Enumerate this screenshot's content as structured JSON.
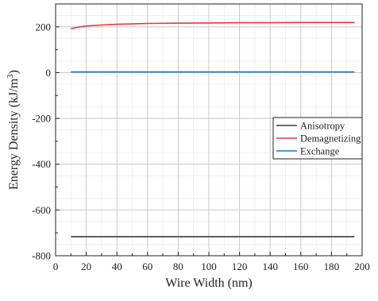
{
  "chart_data": {
    "type": "line",
    "xlabel": "Wire Width (nm)",
    "ylabel_main": "Energy Density (kJ/m",
    "ylabel_sup": "3",
    "ylabel_close": ")",
    "xlim": [
      0,
      200
    ],
    "ylim": [
      -800,
      300
    ],
    "x_ticks": [
      0,
      20,
      40,
      60,
      80,
      100,
      120,
      140,
      160,
      180,
      200
    ],
    "y_ticks": [
      200,
      0,
      -200,
      -400,
      -600,
      -800
    ],
    "grid": true,
    "legend_position": "right",
    "series": [
      {
        "name": "Anisotropy",
        "color": "#3a3a3a",
        "x": [
          10,
          195
        ],
        "y": [
          -717,
          -717
        ]
      },
      {
        "name": "Demagnetizing",
        "color": "#e8383d",
        "x": [
          10,
          15,
          20,
          30,
          40,
          50,
          60,
          80,
          100,
          120,
          140,
          160,
          180,
          195
        ],
        "y": [
          192,
          199,
          204,
          208,
          211,
          213,
          215,
          216,
          217,
          218,
          218,
          219,
          219,
          219
        ]
      },
      {
        "name": "Exchange",
        "color": "#1f6fd6",
        "x": [
          10,
          195
        ],
        "y": [
          3,
          3
        ]
      }
    ]
  }
}
